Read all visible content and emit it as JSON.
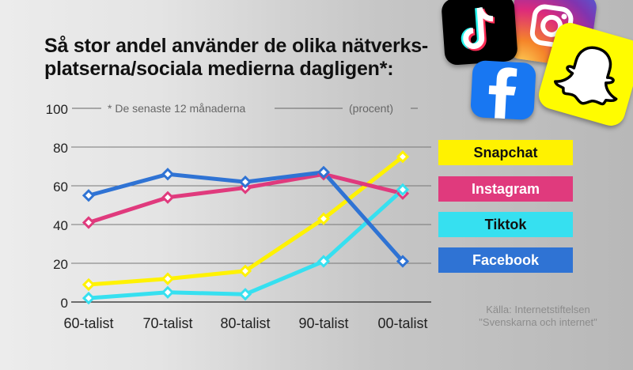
{
  "title_lines": [
    "Så stor andel använder de olika nätverks-",
    "platserna/sociala medierna dagligen*:"
  ],
  "footnote": "* De senaste 12 månaderna",
  "unit": "(procent)",
  "source_lines": [
    "Källa: Internetstiftelsen",
    "\"Svenskarna och internet\""
  ],
  "chart_data": {
    "type": "line",
    "x": [
      "60-talist",
      "70-talist",
      "80-talist",
      "90-talist",
      "00-talist"
    ],
    "ylim": [
      0,
      100
    ],
    "yticks": [
      0,
      20,
      40,
      60,
      80,
      100
    ],
    "series": [
      {
        "name": "Snapchat",
        "color": "#fff200",
        "values": [
          9,
          12,
          16,
          43,
          75
        ]
      },
      {
        "name": "Instagram",
        "color": "#e03a7d",
        "values": [
          41,
          54,
          59,
          66,
          56
        ]
      },
      {
        "name": "Tiktok",
        "color": "#36e0f0",
        "values": [
          2,
          5,
          4,
          21,
          58
        ]
      },
      {
        "name": "Facebook",
        "color": "#2f73d4",
        "values": [
          55,
          66,
          62,
          67,
          21
        ]
      }
    ]
  },
  "legend": [
    {
      "label": "Snapchat",
      "bg": "#fff200",
      "fg": "#111111"
    },
    {
      "label": "Instagram",
      "bg": "#e03a7d",
      "fg": "#ffffff"
    },
    {
      "label": "Tiktok",
      "bg": "#36e0f0",
      "fg": "#111111"
    },
    {
      "label": "Facebook",
      "bg": "#2f73d4",
      "fg": "#ffffff"
    }
  ],
  "icons": [
    "tiktok-icon",
    "instagram-icon",
    "facebook-icon",
    "snapchat-icon"
  ]
}
